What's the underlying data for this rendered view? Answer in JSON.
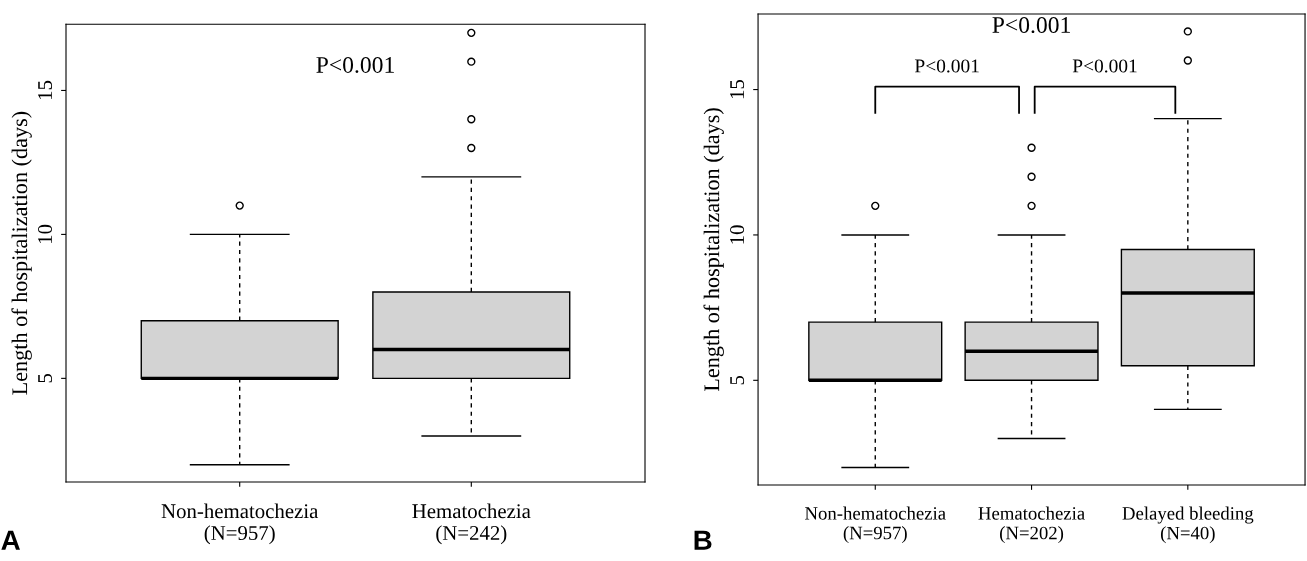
{
  "chart_data": [
    {
      "type": "box",
      "ylabel": "Length of hospitalization (days)",
      "categories": [
        "Non-hematochezia\n(N=957)",
        "Hematochezia\n(N=242)"
      ],
      "boxes": [
        {
          "low": 2,
          "q1": 5,
          "median": 5,
          "q3": 7,
          "high": 10,
          "outliers": [
            11
          ]
        },
        {
          "low": 3,
          "q1": 5,
          "median": 6,
          "q3": 8,
          "high": 12,
          "outliers": [
            13,
            14,
            16,
            17
          ]
        }
      ],
      "color": "#d3d3d3",
      "ylim": [
        1.4,
        17.3
      ],
      "yticks": [
        5,
        10,
        15
      ],
      "grid": false,
      "legend": false,
      "annotations": [
        "P<0.001",
        "A"
      ]
    },
    {
      "type": "box",
      "ylabel": "Length of hospitalization (days)",
      "categories": [
        "Non-hematochezia\n(N=957)",
        "Hematochezia\n(N=202)",
        "Delayed bleeding\n(N=40)"
      ],
      "boxes": [
        {
          "low": 2,
          "q1": 5,
          "median": 5,
          "q3": 7,
          "high": 10,
          "outliers": [
            11
          ]
        },
        {
          "low": 3,
          "q1": 5,
          "median": 6,
          "q3": 7,
          "high": 10,
          "outliers": [
            11,
            12,
            13
          ]
        },
        {
          "low": 4,
          "q1": 5.5,
          "median": 8,
          "q3": 9.5,
          "high": 14,
          "outliers": [
            16,
            17
          ]
        }
      ],
      "color": "#d3d3d3",
      "ylim": [
        1.4,
        17.6
      ],
      "yticks": [
        5,
        10,
        15
      ],
      "grid": false,
      "legend": false,
      "annotations": [
        "P<0.001",
        "P<0.001",
        "P<0.001",
        "B"
      ]
    }
  ]
}
